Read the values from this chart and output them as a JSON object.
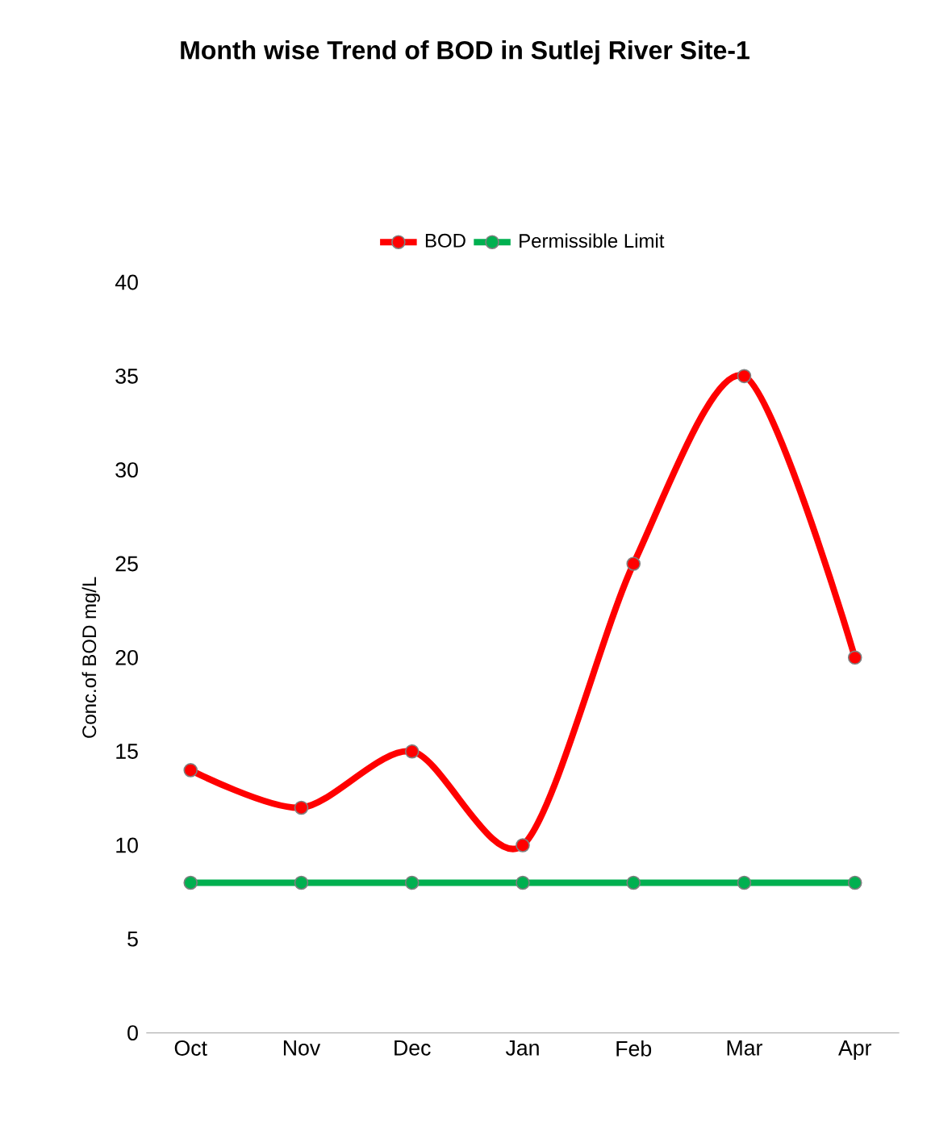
{
  "chart_data": {
    "type": "line",
    "title": "Month wise Trend  of BOD in Sutlej River Site-1",
    "ylabel": "Conc.of BOD mg/L",
    "categories": [
      "Oct",
      "Nov",
      "Dec",
      "Jan",
      "Feb",
      "Mar",
      "Apr"
    ],
    "series": [
      {
        "name": "BOD",
        "color": "#ff0000",
        "values": [
          14,
          12,
          15,
          10,
          25,
          35,
          20
        ]
      },
      {
        "name": "Permissible Limit",
        "color": "#00b050",
        "values": [
          8,
          8,
          8,
          8,
          8,
          8,
          8
        ]
      }
    ],
    "ylim": [
      0,
      40
    ],
    "yticks": [
      0,
      5,
      10,
      15,
      20,
      25,
      30,
      35,
      40
    ],
    "grid": false,
    "legend": "top",
    "marker": "circle",
    "line_style": "solid"
  }
}
